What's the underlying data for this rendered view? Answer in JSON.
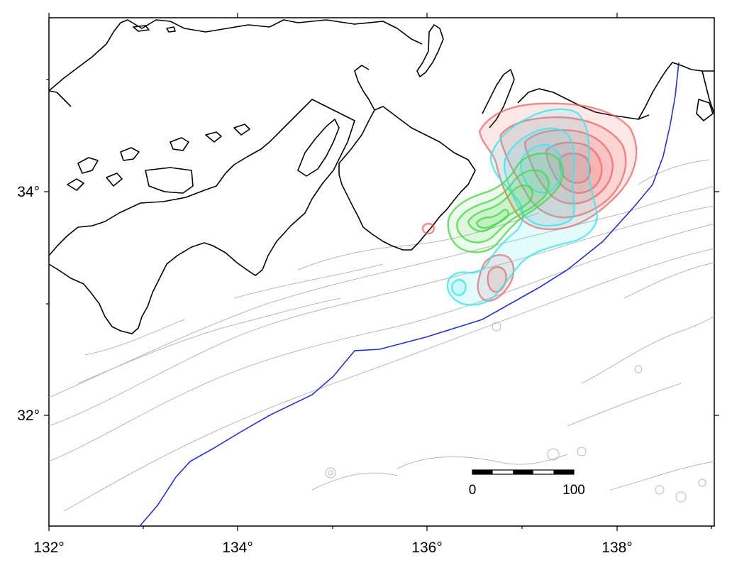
{
  "map": {
    "x_ticks": [
      "132°",
      "134°",
      "136°",
      "138°"
    ],
    "y_ticks": [
      "34°",
      "32°"
    ],
    "scale_bar": {
      "start_label": "0",
      "end_label": "100"
    },
    "colors": {
      "red_contours": "#ee5c5c",
      "cyan_contours": "#3ee6ee",
      "green_contours": "#4ad84a",
      "trough_line": "#2430d8",
      "coastline": "#000000",
      "bathymetry": "#b8b8b8"
    }
  }
}
